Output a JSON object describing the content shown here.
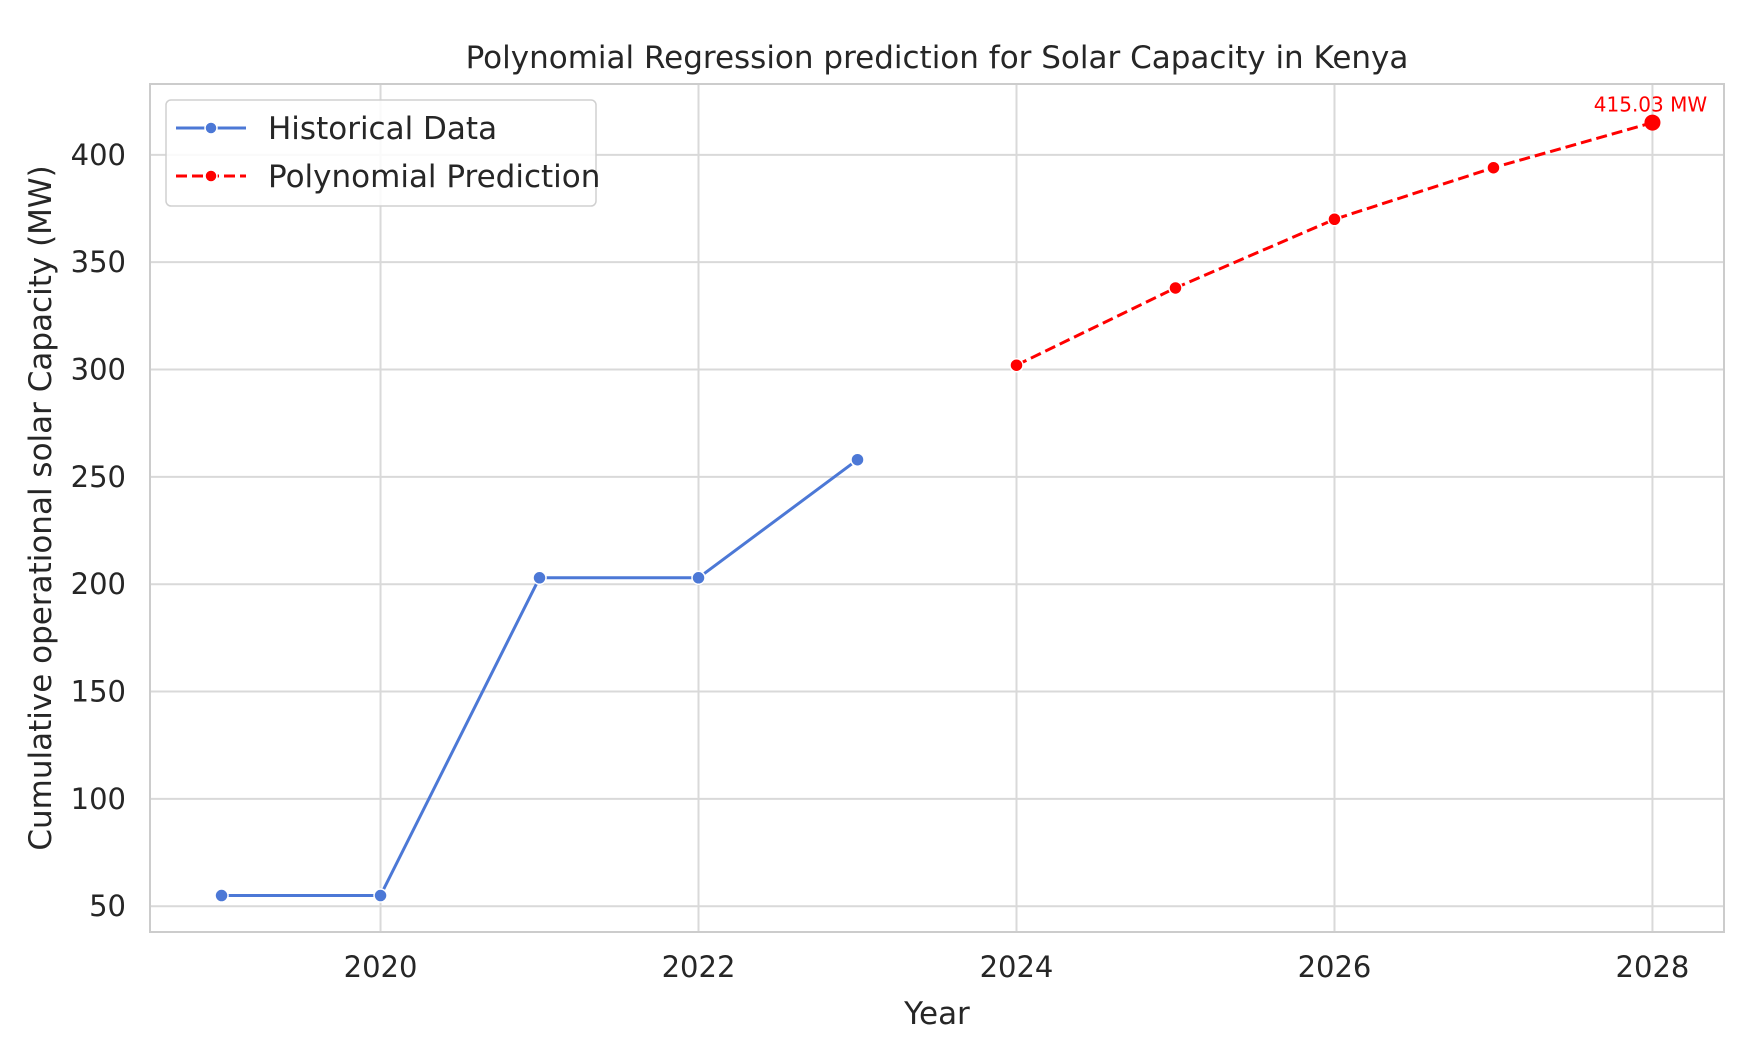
{
  "chart_data": {
    "type": "line",
    "title": "Polynomial Regression prediction for Solar Capacity in Kenya",
    "xlabel": "Year",
    "ylabel": "Cumulative operational solar Capacity (MW)",
    "xlim": [
      2018.55,
      2028.45
    ],
    "ylim": [
      38,
      433
    ],
    "xticks": [
      2020,
      2022,
      2024,
      2026,
      2028
    ],
    "yticks": [
      50,
      100,
      150,
      200,
      250,
      300,
      350,
      400
    ],
    "grid": true,
    "legend_position": "upper-left",
    "series": [
      {
        "name": "Historical Data",
        "color": "#4c78d6",
        "linestyle": "solid",
        "marker": "circle",
        "x": [
          2019,
          2020,
          2021,
          2022,
          2023
        ],
        "y": [
          55,
          55,
          203,
          203,
          258
        ]
      },
      {
        "name": "Polynomial Prediction",
        "color": "#ff0000",
        "linestyle": "dashed",
        "marker": "circle",
        "x": [
          2024,
          2025,
          2026,
          2027,
          2028
        ],
        "y": [
          302,
          338,
          370,
          394,
          415.03
        ]
      }
    ],
    "annotations": [
      {
        "text": "415.03 MW",
        "x": 2028,
        "y": 415.03,
        "color": "#ff0000"
      }
    ]
  }
}
